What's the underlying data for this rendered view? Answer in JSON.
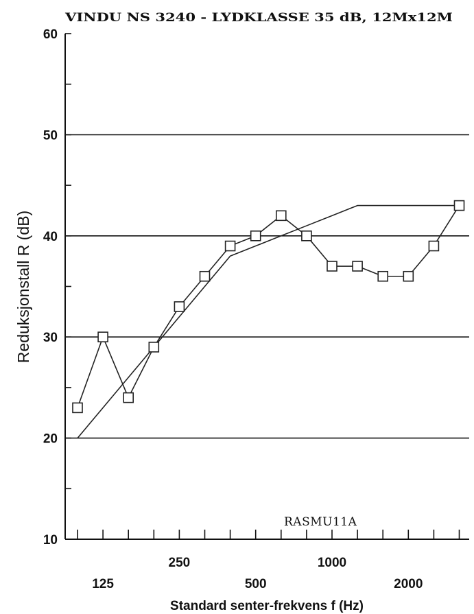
{
  "chart_data": {
    "type": "line",
    "title": "VINDU NS 3240 - LYDKLASSE 35 dB, 12Mx12M",
    "xlabel": "Standard senter-frekvens f (Hz)",
    "ylabel": "Reduksjonstall R (dB)",
    "ylim": [
      10,
      60
    ],
    "yticks": [
      10,
      20,
      30,
      40,
      50,
      60
    ],
    "x": [
      100,
      125,
      160,
      200,
      250,
      315,
      400,
      500,
      630,
      800,
      1000,
      1250,
      1600,
      2000,
      2500,
      3150
    ],
    "xtick_labels_upper": [
      {
        "x": 250,
        "label": "250"
      },
      {
        "x": 1000,
        "label": "1000"
      }
    ],
    "xtick_labels_lower": [
      {
        "x": 125,
        "label": "125"
      },
      {
        "x": 500,
        "label": "500"
      },
      {
        "x": 2000,
        "label": "2000"
      }
    ],
    "grid": "horizontal at 20, 30, 40, 50",
    "annotation": "RASMU11A",
    "series": [
      {
        "marker": "square",
        "color": "#222222",
        "values": [
          23,
          30,
          24,
          29,
          33,
          36,
          39,
          40,
          42,
          40,
          37,
          37,
          36,
          36,
          39,
          43
        ]
      },
      {
        "marker": "none",
        "color": "#222222",
        "values": [
          20,
          23,
          26,
          29,
          32,
          35,
          38,
          39,
          40,
          41,
          42,
          43,
          43,
          43,
          43,
          43
        ]
      }
    ]
  }
}
